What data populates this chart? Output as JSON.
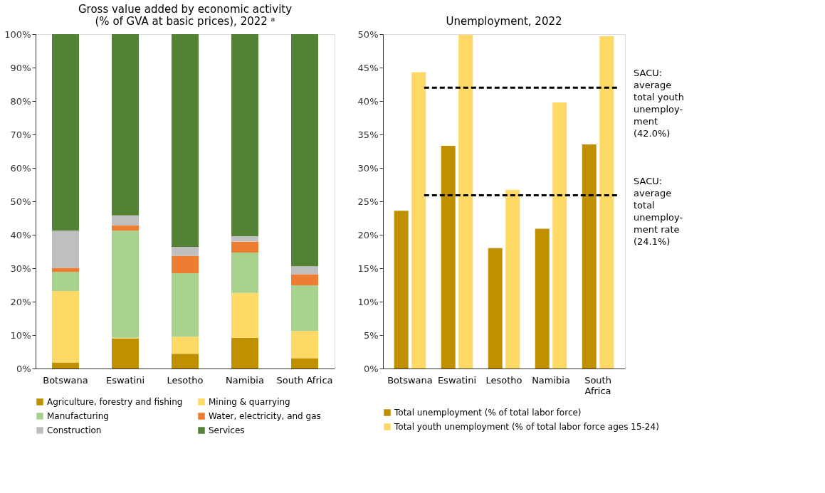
{
  "chart_data": [
    {
      "type": "bar",
      "title": [
        "Gross value added by economic activity",
        "(% of GVA at basic prices), 2022 ᵃ"
      ],
      "stacked": true,
      "legend": "bottom",
      "grid": false,
      "categories": [
        "Botswana",
        "Eswatini",
        "Lesotho",
        "Namibia",
        "South Africa"
      ],
      "ylim": [
        0,
        100
      ],
      "yticks": [
        {
          "value": 0,
          "label": "0%"
        },
        {
          "value": 10,
          "label": "10%"
        },
        {
          "value": 20,
          "label": "20%"
        },
        {
          "value": 30,
          "label": "30%"
        },
        {
          "value": 40,
          "label": "40%"
        },
        {
          "value": 50,
          "label": "50%"
        },
        {
          "value": 60,
          "label": "60%"
        },
        {
          "value": 70,
          "label": "70%"
        },
        {
          "value": 80,
          "label": "80%"
        },
        {
          "value": 90,
          "label": "90%"
        },
        {
          "value": 100,
          "label": "100%"
        }
      ],
      "series": [
        {
          "name": "Agriculture, forestry and fishing",
          "color": "#bf9000",
          "values": [
            1.8,
            9.0,
            4.4,
            9.2,
            3.1
          ]
        },
        {
          "name": "Mining & quarrying",
          "color": "#ffd966",
          "values": [
            21.4,
            0.2,
            5.1,
            13.4,
            8.1
          ]
        },
        {
          "name": "Manufacturing",
          "color": "#a9d18e",
          "values": [
            5.7,
            32.0,
            19.0,
            12.1,
            13.7
          ]
        },
        {
          "name": "Water, electricity, and gas",
          "color": "#ed7d31",
          "values": [
            1.2,
            1.6,
            5.2,
            3.2,
            3.3
          ]
        },
        {
          "name": "Construction",
          "color": "#bfbfbf",
          "values": [
            11.1,
            3.0,
            2.7,
            1.7,
            2.4
          ]
        },
        {
          "name": "Services",
          "color": "#548235",
          "values": [
            58.8,
            54.2,
            63.6,
            60.4,
            69.4
          ]
        }
      ]
    },
    {
      "type": "bar",
      "title": "Unemployment, 2022",
      "legend": "bottom",
      "grid": false,
      "categories": [
        "Botswana",
        "Eswatini",
        "Lesotho",
        "Namibia",
        "South Africa"
      ],
      "ylim": [
        0,
        50
      ],
      "yticks": [
        {
          "value": 0,
          "label": "0%"
        },
        {
          "value": 5,
          "label": "5%"
        },
        {
          "value": 10,
          "label": "10%"
        },
        {
          "value": 15,
          "label": "15%"
        },
        {
          "value": 20,
          "label": "20%"
        },
        {
          "value": 25,
          "label": "25%"
        },
        {
          "value": 30,
          "label": "30%"
        },
        {
          "value": 35,
          "label": "35%"
        },
        {
          "value": 40,
          "label": "40%"
        },
        {
          "value": 45,
          "label": "45%"
        },
        {
          "value": 50,
          "label": "50%"
        }
      ],
      "series": [
        {
          "name": "Total unemployment (% of total labor force)",
          "color": "#bf9000",
          "values": [
            23.6,
            33.3,
            18.0,
            20.9,
            33.5
          ]
        },
        {
          "name": "Total youth unemployment (% of total labor force ages 15-24)",
          "color": "#ffd966",
          "values": [
            44.3,
            49.9,
            26.7,
            39.8,
            49.7
          ]
        }
      ],
      "ref_lines": [
        {
          "axis": "y",
          "value": 42.0,
          "label": "SACU:\naverage\ntotal youth\nunemploy-\nment\n(42.0%)",
          "color": "#000000",
          "line_style": "dashed"
        },
        {
          "axis": "y",
          "value": 25.9,
          "label": "SACU:\naverage\ntotal\nunemploy-\nment rate\n(24.1%)",
          "color": "#000000",
          "line_style": "dashed"
        }
      ]
    }
  ]
}
